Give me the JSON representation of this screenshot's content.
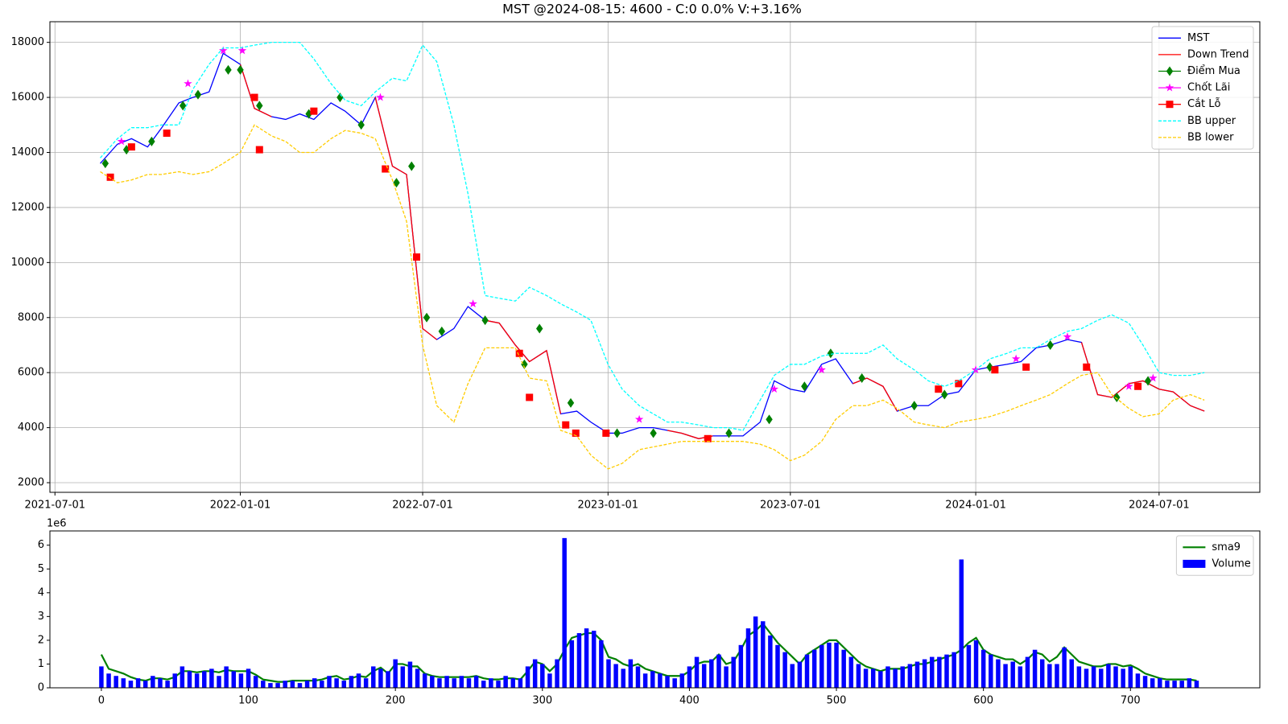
{
  "chart_data": [
    {
      "type": "line",
      "title": "MST @2024-08-15: 4600 - C:0 0.0% V:+3.16%",
      "x": [
        "2021-08-15",
        "2021-09-01",
        "2021-09-15",
        "2021-10-01",
        "2021-10-15",
        "2021-11-01",
        "2021-11-15",
        "2021-12-01",
        "2021-12-15",
        "2022-01-01",
        "2022-01-15",
        "2022-02-01",
        "2022-02-15",
        "2022-03-01",
        "2022-03-15",
        "2022-04-01",
        "2022-04-15",
        "2022-05-01",
        "2022-05-15",
        "2022-06-01",
        "2022-06-15",
        "2022-07-01",
        "2022-07-15",
        "2022-08-01",
        "2022-08-15",
        "2022-09-01",
        "2022-09-15",
        "2022-10-01",
        "2022-10-15",
        "2022-11-01",
        "2022-11-15",
        "2022-12-01",
        "2022-12-15",
        "2023-01-01",
        "2023-01-15",
        "2023-02-01",
        "2023-02-15",
        "2023-03-01",
        "2023-03-15",
        "2023-04-01",
        "2023-04-15",
        "2023-05-01",
        "2023-05-15",
        "2023-06-01",
        "2023-06-15",
        "2023-07-01",
        "2023-07-15",
        "2023-08-01",
        "2023-08-15",
        "2023-09-01",
        "2023-09-15",
        "2023-10-01",
        "2023-10-15",
        "2023-11-01",
        "2023-11-15",
        "2023-12-01",
        "2023-12-15",
        "2024-01-01",
        "2024-01-15",
        "2024-02-01",
        "2024-02-15",
        "2024-03-01",
        "2024-03-15",
        "2024-04-01",
        "2024-04-15",
        "2024-05-01",
        "2024-05-15",
        "2024-06-01",
        "2024-06-15",
        "2024-07-01",
        "2024-07-15",
        "2024-08-01",
        "2024-08-15"
      ],
      "series": [
        {
          "name": "MST",
          "color": "#0000ff",
          "values": [
            13600,
            14300,
            14500,
            14200,
            14900,
            15800,
            16000,
            16200,
            17600,
            17200,
            15600,
            15300,
            15200,
            15400,
            15200,
            15800,
            15500,
            15000,
            16000,
            13500,
            13200,
            7600,
            7200,
            7600,
            8400,
            7900,
            7800,
            7000,
            6400,
            6800,
            4500,
            4600,
            4200,
            3800,
            3800,
            4000,
            4000,
            3900,
            3800,
            3600,
            3700,
            3700,
            3700,
            4200,
            5700,
            5400,
            5300,
            6300,
            6500,
            5600,
            5800,
            5500,
            4600,
            4800,
            4800,
            5200,
            5300,
            6100,
            6200,
            6300,
            6400,
            6900,
            7000,
            7200,
            7100,
            5200,
            5100,
            5600,
            5700,
            5400,
            5300,
            4800,
            4600
          ]
        },
        {
          "name": "Down Trend",
          "color": "#ff0000",
          "values": [
            null,
            null,
            null,
            null,
            null,
            null,
            null,
            null,
            null,
            17200,
            15600,
            15300,
            null,
            null,
            null,
            null,
            null,
            null,
            16000,
            13500,
            13200,
            7600,
            7200,
            null,
            null,
            7900,
            7800,
            7000,
            6400,
            6800,
            4500,
            null,
            null,
            null,
            null,
            null,
            null,
            3900,
            3800,
            3600,
            3700,
            null,
            null,
            null,
            null,
            null,
            null,
            null,
            null,
            5600,
            5800,
            5500,
            4600,
            null,
            null,
            null,
            null,
            null,
            null,
            null,
            null,
            null,
            null,
            null,
            7100,
            5200,
            5100,
            5600,
            5700,
            5400,
            5300,
            4800,
            4600
          ]
        },
        {
          "name": "Điểm Mua",
          "color": "#008000",
          "marker": "diamond",
          "x": [
            "2021-08-20",
            "2021-09-10",
            "2021-10-05",
            "2021-11-05",
            "2021-11-20",
            "2021-12-20",
            "2022-01-01",
            "2022-01-20",
            "2022-03-10",
            "2022-04-10",
            "2022-05-01",
            "2022-06-05",
            "2022-06-20",
            "2022-07-05",
            "2022-07-20",
            "2022-09-01",
            "2022-10-10",
            "2022-10-25",
            "2022-11-25",
            "2023-01-10",
            "2023-02-15",
            "2023-05-01",
            "2023-06-10",
            "2023-07-15",
            "2023-08-10",
            "2023-09-10",
            "2023-11-01",
            "2023-12-01",
            "2024-01-15",
            "2024-03-15",
            "2024-05-20",
            "2024-06-20"
          ],
          "values": [
            13600,
            14100,
            14400,
            15700,
            16100,
            17000,
            17000,
            15700,
            15400,
            16000,
            15000,
            12900,
            13500,
            8000,
            7500,
            7900,
            6300,
            7600,
            4900,
            3800,
            3800,
            3800,
            4300,
            5500,
            6700,
            5800,
            4800,
            5200,
            6200,
            7000,
            5100,
            5700
          ]
        },
        {
          "name": "Chốt Lãi",
          "color": "#ff00ff",
          "marker": "star",
          "x": [
            "2021-09-05",
            "2021-11-10",
            "2021-12-15",
            "2022-01-03",
            "2022-05-20",
            "2022-08-20",
            "2023-02-01",
            "2023-06-15",
            "2023-08-01",
            "2024-01-01",
            "2024-02-10",
            "2024-04-01",
            "2024-06-01",
            "2024-06-25"
          ],
          "values": [
            14400,
            16500,
            17700,
            17700,
            16000,
            8500,
            4300,
            5400,
            6100,
            6100,
            6500,
            7300,
            5500,
            5800
          ]
        },
        {
          "name": "Cắt Lỗ",
          "color": "#ff0000",
          "marker": "square",
          "x": [
            "2021-08-25",
            "2021-09-15",
            "2021-10-20",
            "2022-01-15",
            "2022-01-20",
            "2022-03-15",
            "2022-05-25",
            "2022-06-25",
            "2022-10-05",
            "2022-10-15",
            "2022-11-20",
            "2022-11-30",
            "2022-12-30",
            "2023-04-10",
            "2023-11-25",
            "2023-12-15",
            "2024-01-20",
            "2024-02-20",
            "2024-04-20",
            "2024-06-10"
          ],
          "values": [
            13100,
            14200,
            14700,
            16000,
            14100,
            15500,
            13400,
            10200,
            6700,
            5100,
            4100,
            3800,
            3800,
            3600,
            5400,
            5600,
            6100,
            6200,
            6200,
            5500
          ]
        },
        {
          "name": "BB upper",
          "color": "#00ffff",
          "dash": true,
          "values": [
            13800,
            14500,
            14900,
            14900,
            15000,
            15000,
            16300,
            17200,
            17800,
            17800,
            17900,
            18000,
            18000,
            18000,
            17400,
            16500,
            15900,
            15700,
            16200,
            16700,
            16600,
            17900,
            17300,
            15000,
            12500,
            8800,
            8700,
            8600,
            9100,
            8800,
            8500,
            8200,
            7900,
            6300,
            5400,
            4800,
            4500,
            4200,
            4200,
            4100,
            4000,
            4000,
            3900,
            5000,
            5900,
            6300,
            6300,
            6600,
            6700,
            6700,
            6700,
            7000,
            6500,
            6100,
            5700,
            5500,
            5700,
            6100,
            6500,
            6700,
            6900,
            6900,
            7200,
            7500,
            7600,
            7900,
            8100,
            7800,
            7000,
            6000,
            5900,
            5900,
            6000
          ]
        },
        {
          "name": "BB lower",
          "color": "#ffcc00",
          "dash": true,
          "values": [
            13300,
            12900,
            13000,
            13200,
            13200,
            13300,
            13200,
            13300,
            13600,
            14000,
            15000,
            14600,
            14400,
            14000,
            14000,
            14500,
            14800,
            14700,
            14500,
            13000,
            11500,
            7000,
            4800,
            4200,
            5600,
            6900,
            6900,
            6900,
            5800,
            5700,
            3900,
            3700,
            3000,
            2500,
            2700,
            3200,
            3300,
            3400,
            3500,
            3500,
            3500,
            3500,
            3500,
            3400,
            3200,
            2800,
            3000,
            3500,
            4300,
            4800,
            4800,
            5000,
            4700,
            4200,
            4100,
            4000,
            4200,
            4300,
            4400,
            4600,
            4800,
            5000,
            5200,
            5600,
            5900,
            6000,
            5200,
            4700,
            4400,
            4500,
            5000,
            5200,
            5000
          ]
        }
      ],
      "xlim": [
        "2021-06-26",
        "2024-10-09"
      ],
      "xticks": [
        "2021-07-01",
        "2022-01-01",
        "2022-07-01",
        "2023-01-01",
        "2023-07-01",
        "2024-01-01",
        "2024-07-01"
      ],
      "ylim": [
        1650,
        18750
      ],
      "yticks": [
        2000,
        4000,
        6000,
        8000,
        10000,
        12000,
        14000,
        16000,
        18000
      ],
      "grid": true,
      "legend": "upper right"
    },
    {
      "type": "bar",
      "y_offset_label": "1e6",
      "x": [
        0,
        5,
        10,
        15,
        20,
        25,
        30,
        35,
        40,
        45,
        50,
        55,
        60,
        65,
        70,
        75,
        80,
        85,
        90,
        95,
        100,
        105,
        110,
        115,
        120,
        125,
        130,
        135,
        140,
        145,
        150,
        155,
        160,
        165,
        170,
        175,
        180,
        185,
        190,
        195,
        200,
        205,
        210,
        215,
        220,
        225,
        230,
        235,
        240,
        245,
        250,
        255,
        260,
        265,
        270,
        275,
        280,
        285,
        290,
        295,
        300,
        305,
        310,
        315,
        320,
        325,
        330,
        335,
        340,
        345,
        350,
        355,
        360,
        365,
        370,
        375,
        380,
        385,
        390,
        395,
        400,
        405,
        410,
        415,
        420,
        425,
        430,
        435,
        440,
        445,
        450,
        455,
        460,
        465,
        470,
        475,
        480,
        485,
        490,
        495,
        500,
        505,
        510,
        515,
        520,
        525,
        530,
        535,
        540,
        545,
        550,
        555,
        560,
        565,
        570,
        575,
        580,
        585,
        590,
        595,
        600,
        605,
        610,
        615,
        620,
        625,
        630,
        635,
        640,
        645,
        650,
        655,
        660,
        665,
        670,
        675,
        680,
        685,
        690,
        695,
        700,
        705,
        710,
        715,
        720,
        725,
        730,
        735,
        740,
        745
      ],
      "series": [
        {
          "name": "sma9",
          "type": "line",
          "color": "#008000",
          "values": [
            1.4,
            0.8,
            0.7,
            0.6,
            0.45,
            0.35,
            0.3,
            0.4,
            0.4,
            0.35,
            0.45,
            0.7,
            0.7,
            0.65,
            0.7,
            0.7,
            0.65,
            0.75,
            0.7,
            0.7,
            0.7,
            0.55,
            0.35,
            0.3,
            0.25,
            0.25,
            0.3,
            0.3,
            0.3,
            0.3,
            0.35,
            0.45,
            0.5,
            0.35,
            0.4,
            0.5,
            0.45,
            0.7,
            0.85,
            0.6,
            1.0,
            1.0,
            0.9,
            0.9,
            0.6,
            0.5,
            0.45,
            0.45,
            0.45,
            0.45,
            0.45,
            0.5,
            0.4,
            0.35,
            0.35,
            0.4,
            0.4,
            0.35,
            0.7,
            1.1,
            1.0,
            0.7,
            1.0,
            1.6,
            2.1,
            2.2,
            2.3,
            2.3,
            2.0,
            1.3,
            1.2,
            1.0,
            0.9,
            1.0,
            0.8,
            0.7,
            0.6,
            0.5,
            0.5,
            0.5,
            0.7,
            1.0,
            1.1,
            1.1,
            1.4,
            1.0,
            1.1,
            1.6,
            2.2,
            2.4,
            2.7,
            2.3,
            1.9,
            1.6,
            1.3,
            1.0,
            1.4,
            1.6,
            1.8,
            2.0,
            2.0,
            1.7,
            1.4,
            1.1,
            0.9,
            0.8,
            0.7,
            0.8,
            0.8,
            0.8,
            0.9,
            1.0,
            1.0,
            1.1,
            1.2,
            1.3,
            1.4,
            1.6,
            1.9,
            2.1,
            1.6,
            1.4,
            1.3,
            1.2,
            1.2,
            1.0,
            1.2,
            1.5,
            1.4,
            1.1,
            1.3,
            1.7,
            1.4,
            1.1,
            1.0,
            0.9,
            0.9,
            1.0,
            1.0,
            0.9,
            0.95,
            0.8,
            0.6,
            0.5,
            0.4,
            0.35,
            0.35,
            0.35,
            0.35,
            0.3
          ]
        },
        {
          "name": "Volume",
          "type": "bar",
          "color": "#0000ff",
          "values": [
            0.9,
            0.6,
            0.5,
            0.4,
            0.3,
            0.4,
            0.3,
            0.5,
            0.4,
            0.3,
            0.6,
            0.9,
            0.7,
            0.6,
            0.7,
            0.8,
            0.5,
            0.9,
            0.7,
            0.6,
            0.8,
            0.5,
            0.3,
            0.2,
            0.2,
            0.3,
            0.3,
            0.2,
            0.3,
            0.4,
            0.3,
            0.5,
            0.4,
            0.3,
            0.5,
            0.6,
            0.4,
            0.9,
            0.8,
            0.7,
            1.2,
            0.9,
            1.1,
            0.8,
            0.6,
            0.5,
            0.4,
            0.5,
            0.4,
            0.5,
            0.4,
            0.5,
            0.3,
            0.4,
            0.3,
            0.5,
            0.4,
            0.4,
            0.9,
            1.2,
            1.0,
            0.6,
            1.2,
            6.3,
            2.0,
            2.3,
            2.5,
            2.4,
            2.0,
            1.2,
            1.0,
            0.8,
            1.2,
            0.9,
            0.6,
            0.7,
            0.6,
            0.5,
            0.4,
            0.6,
            0.9,
            1.3,
            1.0,
            1.2,
            1.4,
            0.9,
            1.3,
            1.8,
            2.5,
            3.0,
            2.8,
            2.2,
            1.8,
            1.5,
            1.0,
            1.1,
            1.4,
            1.6,
            1.8,
            1.9,
            1.9,
            1.6,
            1.3,
            1.0,
            0.8,
            0.8,
            0.7,
            0.9,
            0.8,
            0.9,
            1.0,
            1.1,
            1.2,
            1.3,
            1.3,
            1.4,
            1.5,
            5.4,
            1.8,
            2.0,
            1.6,
            1.4,
            1.2,
            1.0,
            1.1,
            0.9,
            1.3,
            1.6,
            1.2,
            1.0,
            1.0,
            1.7,
            1.2,
            0.9,
            0.8,
            0.9,
            0.8,
            1.0,
            0.9,
            0.8,
            0.9,
            0.6,
            0.5,
            0.4,
            0.4,
            0.3,
            0.3,
            0.3,
            0.4,
            0.3
          ]
        }
      ],
      "xlim": [
        -35,
        788
      ],
      "xticks": [
        0,
        100,
        200,
        300,
        400,
        500,
        600,
        700
      ],
      "ylim": [
        0,
        6.6
      ],
      "yticks": [
        0,
        1,
        2,
        3,
        4,
        5,
        6
      ],
      "grid": false,
      "legend": "upper right"
    }
  ]
}
